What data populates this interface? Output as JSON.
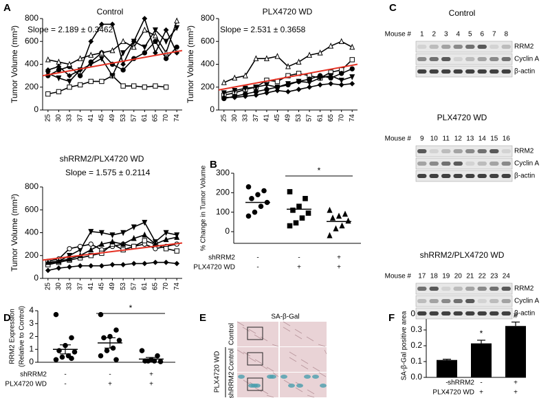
{
  "chart_data": [
    {
      "type": "line",
      "panel": "A",
      "title": "Control",
      "annotation": "Slope = 2.189 ± 0.3462",
      "y_label": "Tumor Volume (mm³)",
      "categories": [
        "25",
        "30",
        "33",
        "37",
        "41",
        "45",
        "49",
        "53",
        "57",
        "61",
        "65",
        "70",
        "74"
      ],
      "ylim": [
        0,
        800
      ],
      "yticks": [
        0,
        200,
        400,
        600,
        800
      ],
      "color": "#000000",
      "fit_color": "#e53123",
      "fit_line": [
        300,
        520
      ],
      "series": [
        {
          "marker": "circle",
          "filled": true,
          "values": [
            300,
            350,
            380,
            300,
            420,
            500,
            400,
            350,
            450,
            500,
            600,
            450,
            550
          ]
        },
        {
          "marker": "triangle",
          "filled": false,
          "values": [
            440,
            420,
            400,
            450,
            480,
            500,
            520,
            600,
            550,
            700,
            650,
            500,
            780
          ]
        },
        {
          "marker": "square",
          "filled": false,
          "values": [
            140,
            160,
            200,
            220,
            250,
            250,
            300,
            210,
            210,
            200,
            210,
            200,
            null
          ]
        },
        {
          "marker": "diamond",
          "filled": true,
          "values": [
            350,
            380,
            300,
            350,
            600,
            750,
            750,
            400,
            600,
            800,
            500,
            700,
            500
          ]
        },
        {
          "marker": "invtriangle",
          "filled": true,
          "values": [
            320,
            280,
            250,
            350,
            400,
            450,
            300,
            500,
            600,
            550,
            700,
            600,
            720
          ]
        }
      ]
    },
    {
      "type": "line",
      "panel": "",
      "title": "PLX4720 WD",
      "annotation": "Slope = 2.531 ± 0.3658",
      "y_label": "Tumor Volume (mm³)",
      "categories": [
        "25",
        "30",
        "33",
        "37",
        "41",
        "45",
        "49",
        "53",
        "57",
        "61",
        "65",
        "70",
        "74"
      ],
      "ylim": [
        0,
        800
      ],
      "yticks": [
        0,
        200,
        400,
        600,
        800
      ],
      "color": "#000000",
      "fit_color": "#e53123",
      "fit_line": [
        175,
        400
      ],
      "series": [
        {
          "marker": "triangle",
          "filled": false,
          "values": [
            240,
            280,
            300,
            450,
            450,
            470,
            380,
            420,
            480,
            500,
            560,
            600,
            550
          ]
        },
        {
          "marker": "square",
          "filled": false,
          "values": [
            130,
            150,
            180,
            200,
            260,
            250,
            300,
            320,
            300,
            280,
            330,
            350,
            440
          ]
        },
        {
          "marker": "circle",
          "filled": true,
          "values": [
            100,
            120,
            140,
            160,
            180,
            200,
            220,
            250,
            270,
            300,
            280,
            320,
            360
          ]
        },
        {
          "marker": "diamond",
          "filled": true,
          "values": [
            110,
            110,
            120,
            130,
            150,
            170,
            160,
            180,
            200,
            220,
            230,
            220,
            230
          ]
        },
        {
          "marker": "invtriangle",
          "filled": true,
          "values": [
            150,
            170,
            190,
            200,
            220,
            200,
            230,
            250,
            240,
            280,
            300,
            260,
            290
          ]
        }
      ]
    },
    {
      "type": "line",
      "panel": "",
      "title": "shRRM2/PLX4720 WD",
      "annotation": "Slope = 1.575 ± 0.2114",
      "y_label": "Tumor Volume (mm³)",
      "categories": [
        "25",
        "30",
        "33",
        "37",
        "41",
        "45",
        "49",
        "53",
        "57",
        "61",
        "65",
        "70",
        "74"
      ],
      "ylim": [
        0,
        800
      ],
      "yticks": [
        0,
        200,
        400,
        600,
        800
      ],
      "color": "#000000",
      "fit_color": "#e53123",
      "fit_line": [
        160,
        310
      ],
      "series": [
        {
          "marker": "invtriangle",
          "filled": true,
          "values": [
            130,
            150,
            200,
            250,
            410,
            400,
            380,
            400,
            450,
            490,
            320,
            400,
            380
          ]
        },
        {
          "marker": "circle",
          "filled": false,
          "values": [
            150,
            170,
            260,
            280,
            300,
            250,
            280,
            300,
            280,
            300,
            260,
            280,
            300
          ]
        },
        {
          "marker": "square",
          "filled": false,
          "values": [
            120,
            140,
            160,
            180,
            200,
            220,
            300,
            250,
            280,
            330,
            300,
            260,
            240
          ]
        },
        {
          "marker": "diamond",
          "filled": true,
          "values": [
            70,
            90,
            100,
            110,
            110,
            110,
            120,
            120,
            130,
            130,
            140,
            140,
            130
          ]
        },
        {
          "marker": "triangle",
          "filled": true,
          "values": [
            140,
            150,
            170,
            200,
            250,
            300,
            320,
            300,
            350,
            380,
            300,
            340,
            360
          ]
        }
      ]
    },
    {
      "type": "dotplot",
      "panel": "B",
      "y_label": [
        "% Change in Tumor Volume"
      ],
      "ylim": [
        -60,
        300
      ],
      "yticks": [
        0,
        100,
        200,
        300
      ],
      "color": "#000000",
      "groups": [
        {
          "marker": "circle",
          "values": [
            230,
            210,
            190,
            170,
            150,
            130,
            100,
            80
          ],
          "mean": 150
        },
        {
          "marker": "square",
          "values": [
            205,
            170,
            130,
            110,
            95,
            70,
            45,
            30
          ],
          "mean": 115
        },
        {
          "marker": "triangle",
          "values": [
            110,
            90,
            80,
            70,
            55,
            30,
            15,
            -20
          ],
          "mean": 52
        }
      ],
      "significance": {
        "text": "*",
        "from": 1,
        "to": 2
      },
      "rows": [
        {
          "label": "shRRM2",
          "signs": [
            "-",
            "-",
            "+"
          ]
        },
        {
          "label": "PLX4720 WD",
          "signs": [
            "-",
            "+",
            "+"
          ]
        }
      ]
    },
    {
      "type": "dotplot",
      "panel": "D",
      "y_label": [
        "RRM2 Expression",
        "(Relative to Control)"
      ],
      "ylim": [
        0,
        4
      ],
      "yticks": [
        0,
        1,
        2,
        3,
        4
      ],
      "color": "#000000",
      "groups": [
        {
          "marker": "circle",
          "values": [
            3.7,
            1.9,
            1.3,
            0.9,
            0.8,
            0.5,
            0.4,
            0.2,
            0.3
          ],
          "mean": 1.0,
          "error": 0.35
        },
        {
          "marker": "circle",
          "values": [
            3.7,
            2.5,
            2.0,
            1.9,
            1.7,
            1.1,
            0.9,
            0.5,
            0.2
          ],
          "mean": 1.5,
          "error": 0.4
        },
        {
          "marker": "circle",
          "values": [
            0.9,
            0.5,
            0.2,
            0.1,
            0.05,
            0.1,
            0.1
          ],
          "mean": 0.25,
          "error": 0.12
        }
      ],
      "significance": {
        "text": "*",
        "from": 1,
        "to": 2
      },
      "rows": [
        {
          "label": "shRRM2",
          "signs": [
            "-",
            "-",
            "+"
          ]
        },
        {
          "label": "PLX4720 WD",
          "signs": [
            "-",
            "+",
            "+"
          ]
        }
      ]
    },
    {
      "type": "bar",
      "panel": "F",
      "y_label": "SA-β-Gal positive area",
      "ylim": [
        0,
        0.4
      ],
      "yticks": [
        {
          "value": 0,
          "label": "0.0"
        },
        0.1,
        0.2,
        0.3,
        0.4
      ],
      "color": "#000000",
      "values": [
        0.11,
        0.215,
        0.325
      ],
      "errors": [
        0.005,
        0.02,
        0.025
      ],
      "bar_annotations": [
        {
          "index": 1,
          "text": "*"
        },
        {
          "index": 2,
          "text": "#"
        }
      ],
      "rows": [
        {
          "label": "shRRM2",
          "signs": [
            "-",
            "-",
            "+"
          ]
        },
        {
          "label": "PLX4720 WD",
          "signs": [
            "-",
            "+",
            "+"
          ]
        }
      ]
    }
  ],
  "blots": {
    "panel": "C",
    "mouse_label": "Mouse #",
    "bands": [
      "RRM2",
      "Cyclin A",
      "β-actin"
    ],
    "groups": [
      {
        "title": "Control",
        "mice": [
          1,
          2,
          3,
          4,
          5,
          6,
          7,
          8
        ]
      },
      {
        "title": "PLX4720 WD",
        "mice": [
          9,
          10,
          11,
          12,
          13,
          14,
          15,
          16
        ]
      },
      {
        "title": "shRRM2/PLX4720 WD",
        "mice": [
          17,
          18,
          19,
          20,
          21,
          22,
          23,
          24
        ]
      }
    ]
  },
  "images": {
    "panel": "E",
    "title": "SA-β-Gal",
    "group_label": "PLX4720 WD",
    "rows": [
      "Control",
      "Control",
      "shRRM2"
    ]
  }
}
